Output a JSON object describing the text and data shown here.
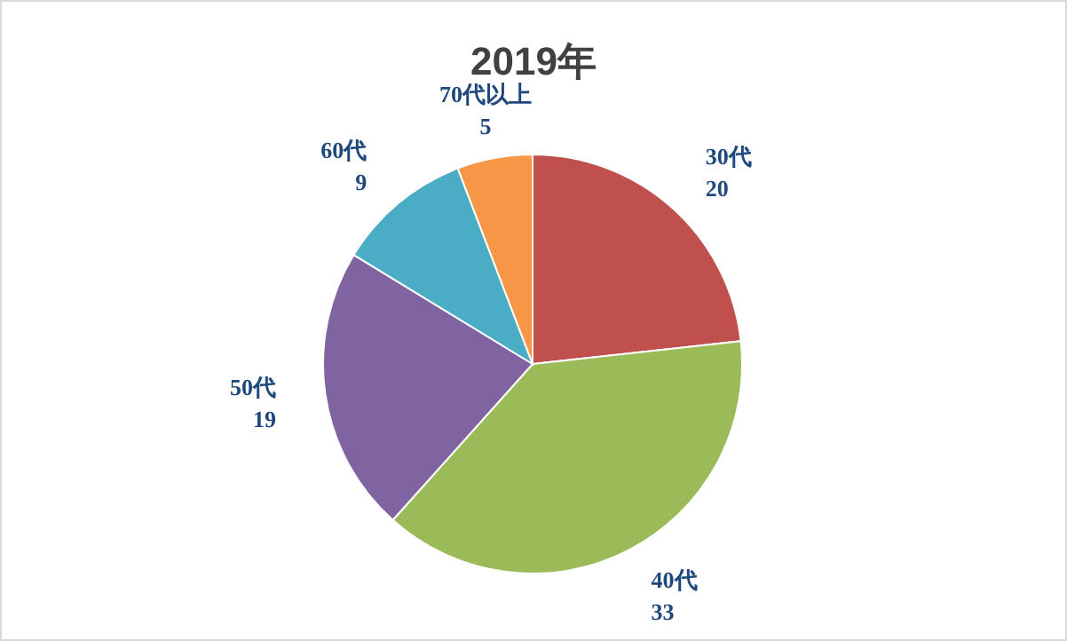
{
  "chart_data": {
    "type": "pie",
    "title": "2019年",
    "categories": [
      "30代",
      "40代",
      "50代",
      "60代",
      "70代以上"
    ],
    "values": [
      20,
      33,
      19,
      9,
      5
    ],
    "colors": [
      "#c0504d",
      "#9bbb59",
      "#8064a2",
      "#4bacc6",
      "#f79646"
    ],
    "data_labels": true
  }
}
